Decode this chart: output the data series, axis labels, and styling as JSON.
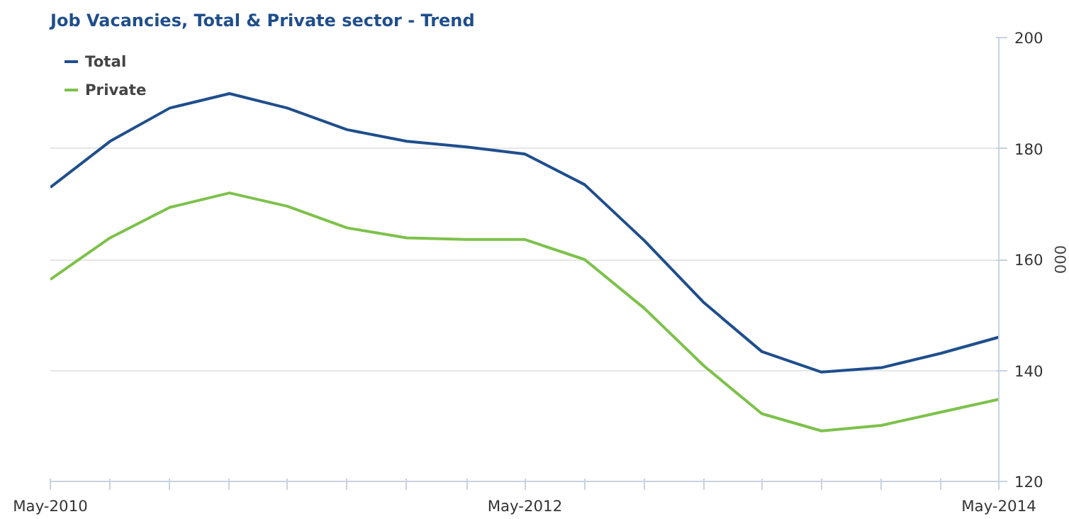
{
  "chart_data": {
    "type": "line",
    "title": "Job Vacancies, Total & Private sector - Trend",
    "ylabel": "000",
    "x": [
      "2010-05",
      "2010-08",
      "2010-11",
      "2011-02",
      "2011-05",
      "2011-08",
      "2011-11",
      "2012-02",
      "2012-05",
      "2012-08",
      "2012-11",
      "2013-02",
      "2013-05",
      "2013-08",
      "2013-11",
      "2014-02",
      "2014-05"
    ],
    "series": [
      {
        "name": "Total",
        "color": "#1f4e8c",
        "values": [
          173,
          181.3,
          187.3,
          189.9,
          187.3,
          183.4,
          181.3,
          180.3,
          179,
          173.5,
          163.4,
          152.2,
          143.4,
          139.7,
          140.5,
          143.1,
          146
        ]
      },
      {
        "name": "Private",
        "color": "#7dc14b",
        "values": [
          156.4,
          163.9,
          169.4,
          172,
          169.6,
          165.7,
          163.9,
          163.6,
          163.6,
          160,
          151.2,
          140.8,
          132.2,
          129.1,
          130.1,
          132.5,
          134.8
        ]
      }
    ],
    "xlim": [
      "2010-05",
      "2014-05"
    ],
    "xticks": [
      {
        "value": "2010-05",
        "label": "May-2010"
      },
      {
        "value": "2010-08",
        "label": null
      },
      {
        "value": "2010-11",
        "label": null
      },
      {
        "value": "2011-02",
        "label": null
      },
      {
        "value": "2011-05",
        "label": null
      },
      {
        "value": "2011-08",
        "label": null
      },
      {
        "value": "2011-11",
        "label": null
      },
      {
        "value": "2012-02",
        "label": null
      },
      {
        "value": "2012-05",
        "label": "May-2012"
      },
      {
        "value": "2012-08",
        "label": null
      },
      {
        "value": "2012-11",
        "label": null
      },
      {
        "value": "2013-02",
        "label": null
      },
      {
        "value": "2013-05",
        "label": null
      },
      {
        "value": "2013-08",
        "label": null
      },
      {
        "value": "2013-11",
        "label": null
      },
      {
        "value": "2014-02",
        "label": null
      },
      {
        "value": "2014-05",
        "label": "May-2014"
      }
    ],
    "ylim": [
      120,
      200
    ],
    "yticks": [
      120,
      140,
      160,
      180,
      200
    ],
    "grid": "y",
    "legend": "top left",
    "marker": "none",
    "line_style": "solid"
  }
}
